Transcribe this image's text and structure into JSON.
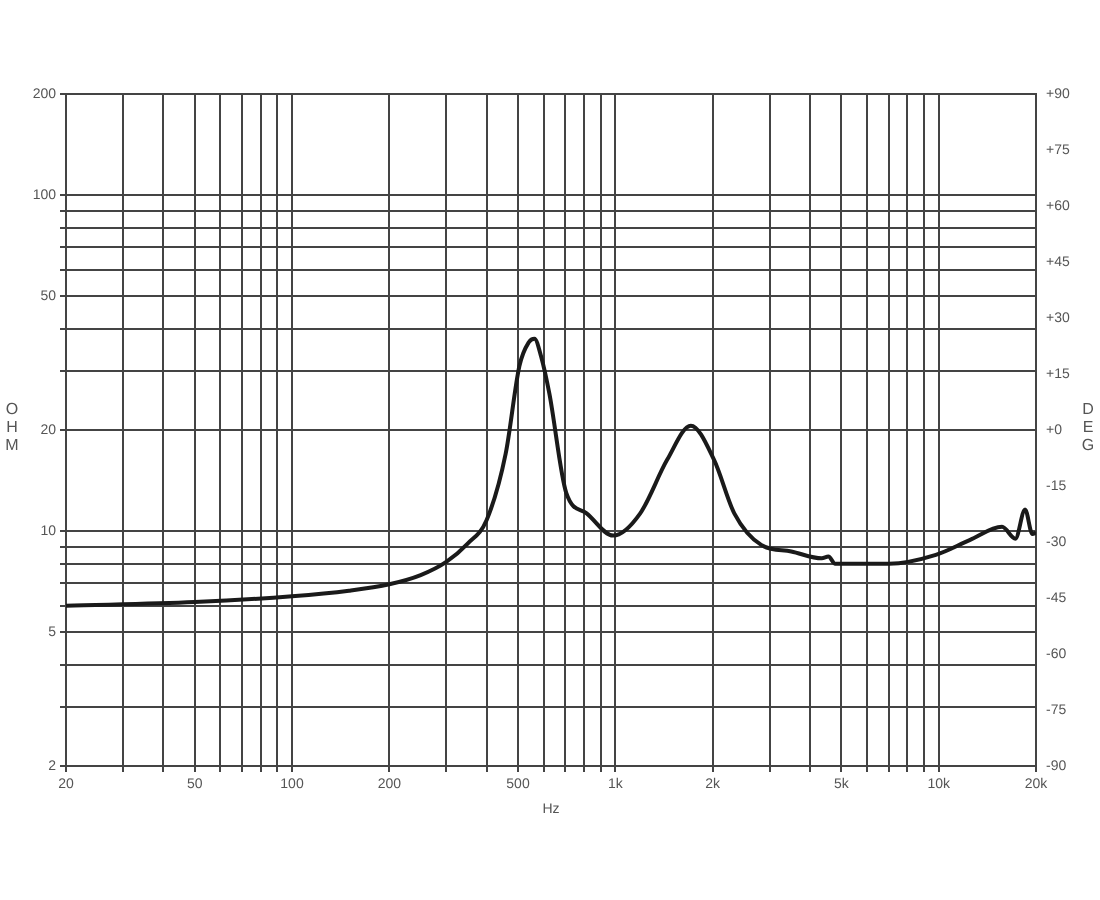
{
  "chart_data": {
    "type": "line",
    "xlabel": "Hz",
    "ylabel": "OHM",
    "y2label": "DEG",
    "log": "xy",
    "grid": true,
    "legend": false,
    "marker": "none",
    "line_style": "solid",
    "x": [
      20,
      50,
      100,
      150,
      200,
      250,
      300,
      350,
      400,
      458,
      505,
      540,
      562,
      590,
      625,
      705,
      815,
      985,
      1194,
      1446,
      1712,
      2020,
      2333,
      2826,
      3500,
      4350,
      4560,
      4785,
      7020,
      9800,
      12470,
      15700,
      17270,
      18500,
      19500,
      20000
    ],
    "series": [
      {
        "color": "#1a1a1a",
        "values": [
          6.0,
          6.15,
          6.4,
          6.65,
          6.95,
          7.4,
          8.1,
          9.2,
          10.8,
          17.0,
          31,
          36.5,
          37.4,
          33,
          25.7,
          13.0,
          11.3,
          9.7,
          11.3,
          16.3,
          20.6,
          16.3,
          11.3,
          9.1,
          8.7,
          8.3,
          8.4,
          8.0,
          8.0,
          8.5,
          9.4,
          10.3,
          9.5,
          11.6,
          9.8,
          9.9
        ]
      }
    ],
    "xlim": [
      20,
      20000
    ],
    "xticks": [
      20,
      {
        "value": 30,
        "label": null
      },
      {
        "value": 40,
        "label": null
      },
      50,
      {
        "value": 60,
        "label": null
      },
      {
        "value": 70,
        "label": null
      },
      {
        "value": 80,
        "label": null
      },
      {
        "value": 90,
        "label": null
      },
      100,
      200,
      {
        "value": 300,
        "label": null
      },
      {
        "value": 400,
        "label": null
      },
      500,
      {
        "value": 600,
        "label": null
      },
      {
        "value": 700,
        "label": null
      },
      {
        "value": 800,
        "label": null
      },
      {
        "value": 900,
        "label": null
      },
      {
        "value": 1000,
        "label": "1k"
      },
      {
        "value": 2000,
        "label": "2k"
      },
      {
        "value": 3000,
        "label": null
      },
      {
        "value": 4000,
        "label": null
      },
      {
        "value": 5000,
        "label": "5k"
      },
      {
        "value": 6000,
        "label": null
      },
      {
        "value": 7000,
        "label": null
      },
      {
        "value": 8000,
        "label": null
      },
      {
        "value": 9000,
        "label": null
      },
      {
        "value": 10000,
        "label": "10k"
      },
      {
        "value": 20000,
        "label": "20k"
      }
    ],
    "ylim": [
      2,
      200
    ],
    "yticks": [
      2,
      {
        "value": 3,
        "label": null
      },
      {
        "value": 4,
        "label": null
      },
      5,
      {
        "value": 6,
        "label": null
      },
      {
        "value": 7,
        "label": null
      },
      {
        "value": 8,
        "label": null
      },
      {
        "value": 9,
        "label": null
      },
      10,
      20,
      {
        "value": 30,
        "label": null
      },
      {
        "value": 40,
        "label": null
      },
      50,
      {
        "value": 60,
        "label": null
      },
      {
        "value": 70,
        "label": null
      },
      {
        "value": 80,
        "label": null
      },
      {
        "value": 90,
        "label": null
      },
      100,
      200
    ],
    "y2lim": [
      -90,
      90
    ],
    "y2ticks": [
      {
        "value": 90,
        "label": "+90"
      },
      {
        "value": 75,
        "label": "+75"
      },
      {
        "value": 60,
        "label": "+60"
      },
      {
        "value": 45,
        "label": "+45"
      },
      {
        "value": 30,
        "label": "+30"
      },
      {
        "value": 15,
        "label": "+15"
      },
      {
        "value": 0,
        "label": "+0"
      },
      -15,
      -30,
      -45,
      -60,
      -75,
      -90
    ]
  }
}
